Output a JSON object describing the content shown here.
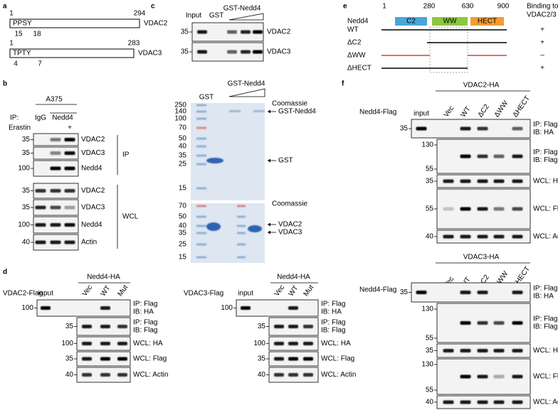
{
  "a": {
    "letter": "a",
    "proteins": [
      {
        "start": "1",
        "end": "294",
        "motif": "PPSY",
        "sites": [
          "15",
          "18"
        ],
        "name": "VDAC2"
      },
      {
        "start": "1",
        "end": "283",
        "motif": "TPTY",
        "sites": [
          "4",
          "7"
        ],
        "name": "VDAC3"
      }
    ]
  },
  "b": {
    "letter": "b",
    "cell_line": "A375",
    "ip": "IP:",
    "lanes": [
      "IgG",
      "Nedd4"
    ],
    "treatment": "Erastin",
    "treatment_sign": "+",
    "groups": [
      {
        "name": "IP",
        "rows": [
          {
            "markers": [
              "35"
            ],
            "label": [
              "VDAC2"
            ]
          },
          {
            "markers": [
              "35"
            ],
            "label": [
              "VDAC3"
            ]
          },
          {
            "markers": [
              "100"
            ],
            "label": [
              "Nedd4"
            ]
          }
        ]
      },
      {
        "name": "WCL",
        "rows": [
          {
            "markers": [
              "35"
            ],
            "label": [
              "VDAC2"
            ]
          },
          {
            "markers": [
              "35"
            ],
            "label": [
              "VDAC3"
            ]
          },
          {
            "markers": [
              "100"
            ],
            "label": [
              "Nedd4"
            ]
          },
          {
            "markers": [
              "40"
            ],
            "label": [
              "Actin"
            ]
          }
        ]
      }
    ]
  },
  "c": {
    "letter": "c",
    "pulldown": {
      "lanes": [
        "Input",
        "GST"
      ],
      "header": "GST-Nedd4",
      "rows": [
        {
          "markers": [
            "35"
          ],
          "label": [
            "VDAC2"
          ]
        },
        {
          "markers": [
            "35"
          ],
          "label": [
            "VDAC3"
          ]
        }
      ]
    },
    "gels": [
      {
        "lane": "GST",
        "header": "GST-Nedd4",
        "stain": "Coomassie",
        "markers": [
          "250",
          "140",
          "100",
          "70",
          "50",
          "40",
          "35",
          "25",
          "15"
        ],
        "arrows": [
          "GST-Nedd4",
          "GST"
        ]
      },
      {
        "stain": "Coomassie",
        "markers": [
          "70",
          "50",
          "40",
          "35",
          "25",
          "15"
        ],
        "arrows": [
          "VDAC2",
          "VDAC3"
        ]
      }
    ]
  },
  "d": {
    "letter": "d",
    "blots": [
      {
        "bait": "VDAC2-Flag",
        "input": "input",
        "header": "Nedd4-HA",
        "lanes": [
          "Vec",
          "WT",
          "Mut"
        ],
        "rows": [
          {
            "markers": [
              "100"
            ],
            "label": [
              "IP: Flag",
              "IB: HA"
            ]
          },
          {
            "markers": [
              "35"
            ],
            "label": [
              "IP: Flag",
              "IB: Flag"
            ]
          },
          {
            "markers": [
              "100"
            ],
            "label": [
              "WCL: HA"
            ]
          },
          {
            "markers": [
              "35"
            ],
            "label": [
              "WCL: Flag"
            ]
          },
          {
            "markers": [
              "40"
            ],
            "label": [
              "WCL: Actin"
            ]
          }
        ]
      },
      {
        "bait": "VDAC3-Flag",
        "input": "input",
        "header": "Nedd4-HA",
        "lanes": [
          "Vec",
          "WT",
          "Mut"
        ],
        "rows": [
          {
            "markers": [
              "100"
            ],
            "label": [
              "IP: Flag",
              "IB: HA"
            ]
          },
          {
            "markers": [
              "35"
            ],
            "label": [
              "IP: Flag",
              "IB: Flag"
            ]
          },
          {
            "markers": [
              "100"
            ],
            "label": [
              "WCL: HA"
            ]
          },
          {
            "markers": [
              "35"
            ],
            "label": [
              "WCL: Flag"
            ]
          },
          {
            "markers": [
              "40"
            ],
            "label": [
              "WCL: Actin"
            ]
          }
        ]
      }
    ]
  },
  "e": {
    "letter": "e",
    "label": "Nedd4",
    "positions": [
      "1",
      "280",
      "630",
      "900"
    ],
    "domains": [
      "C2",
      "WW",
      "HECT"
    ],
    "binding_header": [
      "Binding to",
      "VDAC2/3"
    ],
    "constructs": [
      {
        "name": "WT",
        "binding": "+"
      },
      {
        "name": "ΔC2",
        "binding": "+"
      },
      {
        "name": "ΔWW",
        "binding": "–"
      },
      {
        "name": "ΔHECT",
        "binding": "+"
      }
    ]
  },
  "f": {
    "letter": "f",
    "blots": [
      {
        "header": "VDAC2-HA",
        "bait": "Nedd4-Flag",
        "input": "input",
        "lanes": [
          "Vec",
          "WT",
          "ΔC2",
          "ΔWW",
          "ΔHECT"
        ],
        "rows": [
          {
            "markers": [
              "35"
            ],
            "label": [
              "IP: Flag",
              "IB: HA"
            ]
          },
          {
            "markers": [
              "130",
              "55"
            ],
            "label": [
              "IP: Flag",
              "IB: Flag"
            ]
          },
          {
            "markers": [
              "35"
            ],
            "label": [
              "WCL: HA"
            ]
          },
          {
            "markers": [
              "55"
            ],
            "label": [
              "WCL: Flag"
            ]
          },
          {
            "markers": [
              "40"
            ],
            "label": [
              "WCL: Actin"
            ]
          }
        ]
      },
      {
        "header": "VDAC3-HA",
        "bait": "Nedd4-Flag",
        "input": "input",
        "lanes": [
          "Vec",
          "WT",
          "ΔC2",
          "ΔWW",
          "ΔHECT"
        ],
        "rows": [
          {
            "markers": [
              "35"
            ],
            "label": [
              "IP: Flag",
              "IB: HA"
            ]
          },
          {
            "markers": [
              "130",
              "55"
            ],
            "label": [
              "IP: Flag",
              "IB: Flag"
            ]
          },
          {
            "markers": [
              "35"
            ],
            "label": [
              "WCL: HA"
            ]
          },
          {
            "markers": [
              "130",
              "55"
            ],
            "label": [
              "WCL: Flag"
            ]
          },
          {
            "markers": [
              "40"
            ],
            "label": [
              "WCL: Actin"
            ]
          }
        ]
      }
    ]
  }
}
